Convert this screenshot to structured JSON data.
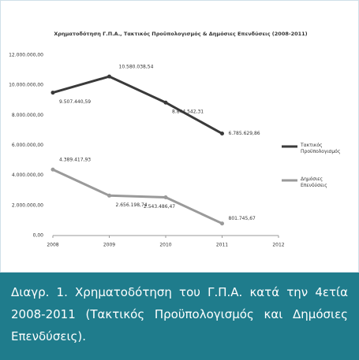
{
  "chart_data": {
    "type": "line",
    "title": "Χρηματοδότηση Γ.Π.Α., Τακτικός Προϋπολογισμός & Δημόσιες Επενδύσεις (2008-2011)",
    "x": [
      2008,
      2009,
      2010,
      2011
    ],
    "series": [
      {
        "name": "Τακτικός Προϋπολογισμός",
        "color": "#3a3a3a",
        "values": [
          9507440.59,
          10580038.54,
          8844542.31,
          6785629.86
        ],
        "value_labels": [
          "9.507.440,59",
          "10.580.038,54",
          "8.844.542,31",
          "6.785.629,86"
        ]
      },
      {
        "name": "Δημόσιες Επενδύσεις",
        "color": "#9a9a9a",
        "values": [
          4389417.93,
          2656198.74,
          2543486.47,
          801745.67
        ],
        "value_labels": [
          "4.389.417,93",
          "2.656.198,74",
          "2.543.486,47",
          "801.745,67"
        ]
      }
    ],
    "xlim": [
      2008,
      2012
    ],
    "xticks": [
      2008,
      2009,
      2010,
      2011,
      2012
    ],
    "ylim": [
      0,
      12000000
    ],
    "yticks": [
      {
        "value": 0,
        "label": "0,00"
      },
      {
        "value": 2000000,
        "label": "2.000.000,00"
      },
      {
        "value": 4000000,
        "label": "4.000.000,00"
      },
      {
        "value": 6000000,
        "label": "6.000.000,00"
      },
      {
        "value": 8000000,
        "label": "8.000.000,00"
      },
      {
        "value": 10000000,
        "label": "10.000.000,00"
      },
      {
        "value": 12000000,
        "label": "12.000.000,00"
      }
    ],
    "grid": false,
    "legend": "right"
  },
  "caption": "Διαγρ. 1. Χρηματοδότηση του Γ.Π.Α. κατά την 4ετία 2008-2011 (Τακτικός Προϋπολογισμός και Δημόσιες Επενδύσεις)."
}
